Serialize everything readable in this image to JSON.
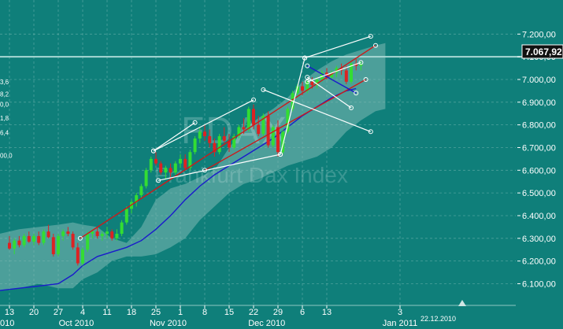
{
  "colors": {
    "background": "#0f7f7a",
    "band": "#7fb9b5",
    "grid": "#6ab0ab",
    "up_candle": "#33dd33",
    "down_candle": "#dd2222",
    "trend_red": "#cc1a1a",
    "trend_blue": "#1a1acc",
    "channel_white": "#ffffff"
  },
  "chart_data": {
    "type": "candlestick",
    "watermark_title": "FDAX",
    "watermark_subtitle": "Frankfurt Dax Index",
    "current_price_label": "7.067,92",
    "current_price": 7067.92,
    "date_marker_label": "22.12.2010",
    "ylim": [
      6060,
      7260
    ],
    "y_ticks": [
      "7.200,00",
      "7.100,00",
      "7.000,00",
      "6.900,00",
      "6.800,00",
      "6.700,00",
      "6.600,00",
      "6.500,00",
      "6.400,00",
      "6.300,00",
      "6.200,00",
      "6.100,00"
    ],
    "y_tick_values": [
      7200,
      7100,
      7000,
      6900,
      6800,
      6700,
      6600,
      6500,
      6400,
      6300,
      6200,
      6100
    ],
    "x_day_labels": [
      "13",
      "20",
      "27",
      "4",
      "11",
      "18",
      "25",
      "1",
      "8",
      "15",
      "22",
      "29",
      "6",
      "13",
      "3"
    ],
    "x_day_index": [
      0,
      5,
      10,
      15,
      20,
      25,
      30,
      35,
      40,
      45,
      50,
      55,
      60,
      65,
      80
    ],
    "x_month_labels": [
      "010",
      "Oct 2010",
      "Nov 2010",
      "Dec 2010",
      "Jan 2011"
    ],
    "x_month_index": [
      -2.6,
      13.7,
      32.5,
      52.7,
      80
    ],
    "fib_labels": [
      "3,6",
      "8,2",
      "0,0",
      "1,8",
      "6,4",
      "00,0"
    ],
    "fib_values": [
      6990,
      6935,
      6890,
      6830,
      6765,
      6665
    ],
    "candles": [
      [
        6280,
        6310,
        6250,
        6255
      ],
      [
        6255,
        6300,
        6230,
        6290
      ],
      [
        6290,
        6310,
        6260,
        6270
      ],
      [
        6270,
        6320,
        6260,
        6310
      ],
      [
        6310,
        6330,
        6280,
        6285
      ],
      [
        6285,
        6320,
        6270,
        6310
      ],
      [
        6310,
        6330,
        6270,
        6280
      ],
      [
        6280,
        6340,
        6270,
        6330
      ],
      [
        6330,
        6360,
        6300,
        6305
      ],
      [
        6305,
        6320,
        6220,
        6230
      ],
      [
        6230,
        6320,
        6220,
        6310
      ],
      [
        6310,
        6340,
        6290,
        6330
      ],
      [
        6330,
        6350,
        6310,
        6320
      ],
      [
        6320,
        6330,
        6250,
        6260
      ],
      [
        6260,
        6280,
        6180,
        6190
      ],
      [
        6190,
        6260,
        6180,
        6250
      ],
      [
        6250,
        6330,
        6240,
        6320
      ],
      [
        6320,
        6340,
        6300,
        6330
      ],
      [
        6330,
        6350,
        6300,
        6310
      ],
      [
        6310,
        6330,
        6290,
        6320
      ],
      [
        6320,
        6350,
        6300,
        6330
      ],
      [
        6330,
        6340,
        6290,
        6300
      ],
      [
        6300,
        6340,
        6290,
        6320
      ],
      [
        6320,
        6380,
        6310,
        6370
      ],
      [
        6370,
        6440,
        6360,
        6430
      ],
      [
        6430,
        6470,
        6410,
        6460
      ],
      [
        6460,
        6500,
        6440,
        6490
      ],
      [
        6490,
        6540,
        6480,
        6530
      ],
      [
        6530,
        6610,
        6520,
        6600
      ],
      [
        6600,
        6660,
        6590,
        6650
      ],
      [
        6650,
        6680,
        6620,
        6630
      ],
      [
        6630,
        6640,
        6580,
        6590
      ],
      [
        6590,
        6620,
        6560,
        6610
      ],
      [
        6610,
        6630,
        6570,
        6590
      ],
      [
        6590,
        6640,
        6580,
        6630
      ],
      [
        6630,
        6670,
        6610,
        6650
      ],
      [
        6650,
        6670,
        6600,
        6610
      ],
      [
        6610,
        6690,
        6600,
        6680
      ],
      [
        6680,
        6750,
        6670,
        6740
      ],
      [
        6740,
        6790,
        6720,
        6770
      ],
      [
        6770,
        6800,
        6730,
        6750
      ],
      [
        6750,
        6780,
        6700,
        6720
      ],
      [
        6720,
        6740,
        6660,
        6680
      ],
      [
        6680,
        6760,
        6670,
        6750
      ],
      [
        6750,
        6790,
        6720,
        6730
      ],
      [
        6730,
        6760,
        6680,
        6700
      ],
      [
        6700,
        6760,
        6690,
        6750
      ],
      [
        6750,
        6800,
        6740,
        6790
      ],
      [
        6790,
        6830,
        6760,
        6780
      ],
      [
        6780,
        6880,
        6770,
        6870
      ],
      [
        6870,
        6890,
        6780,
        6800
      ],
      [
        6800,
        6840,
        6750,
        6760
      ],
      [
        6760,
        6850,
        6750,
        6840
      ],
      [
        6840,
        6860,
        6700,
        6710
      ],
      [
        6710,
        6800,
        6700,
        6790
      ],
      [
        6790,
        6820,
        6660,
        6680
      ],
      [
        6680,
        6780,
        6670,
        6770
      ],
      [
        6770,
        6880,
        6760,
        6870
      ],
      [
        6870,
        6950,
        6860,
        6940
      ],
      [
        6940,
        6980,
        6920,
        6970
      ],
      [
        6970,
        6990,
        6930,
        6950
      ],
      [
        6950,
        7000,
        6940,
        6990
      ],
      [
        6990,
        7010,
        6960,
        6975
      ],
      [
        6975,
        7010,
        6960,
        7000
      ],
      [
        7000,
        7040,
        6990,
        7030
      ],
      [
        7030,
        7050,
        7000,
        7010
      ],
      [
        7010,
        7040,
        6995,
        7030
      ],
      [
        7030,
        7060,
        7010,
        7050
      ],
      [
        7050,
        7070,
        7020,
        7040
      ],
      [
        7040,
        7060,
        6980,
        6990
      ],
      [
        6990,
        7080,
        6980,
        7070
      ],
      [
        7070,
        7090,
        7040,
        7060
      ],
      [
        7060,
        7080,
        7040,
        7068
      ]
    ],
    "band_top": [
      6320,
      6340,
      6350,
      6360,
      6370,
      6360,
      6350,
      6300,
      6280,
      6350,
      6470,
      6520,
      6540,
      6570,
      6600,
      6700,
      6780,
      6830,
      6870,
      6920,
      6990,
      7040,
      7080,
      7110,
      7130,
      7150,
      7160
    ],
    "band_bottom": [
      6070,
      6080,
      6100,
      6080,
      6080,
      6120,
      6150,
      6200,
      6220,
      6220,
      6230,
      6260,
      6300,
      6380,
      6440,
      6500,
      6540,
      6560,
      6590,
      6620,
      6640,
      6660,
      6700,
      6770,
      6820,
      6860,
      6870
    ],
    "band_index": [
      -2,
      2,
      6,
      10,
      13,
      15,
      18,
      21,
      24,
      27,
      30,
      33,
      36,
      39,
      42,
      45,
      48,
      51,
      54,
      57,
      60,
      63,
      66,
      69,
      72,
      75,
      77
    ],
    "ma_blue": [
      6070,
      6080,
      6090,
      6100,
      6140,
      6180,
      6220,
      6240,
      6260,
      6290,
      6340,
      6400,
      6470,
      6530,
      6580,
      6620,
      6660,
      6700,
      6740,
      6790,
      6840,
      6880,
      6920,
      6950,
      6960
    ],
    "ma_index": [
      -2,
      2,
      6,
      10,
      13,
      15,
      18,
      21,
      24,
      27,
      30,
      33,
      36,
      39,
      42,
      45,
      48,
      51,
      54,
      57,
      60,
      63,
      66,
      69,
      71
    ],
    "trend_lines": [
      {
        "color": "red",
        "points": [
          [
            14.5,
            6300
          ],
          [
            75,
            7150
          ]
        ]
      },
      {
        "color": "red",
        "points": [
          [
            40,
            6600
          ],
          [
            73,
            7000
          ]
        ]
      },
      {
        "color": "blue",
        "points": [
          [
            61,
            7060
          ],
          [
            71,
            6940
          ]
        ]
      },
      {
        "color": "white",
        "points": [
          [
            29.5,
            6685
          ],
          [
            50,
            6910
          ]
        ]
      },
      {
        "color": "white",
        "points": [
          [
            29.5,
            6685
          ],
          [
            38,
            6810
          ]
        ]
      },
      {
        "color": "white",
        "points": [
          [
            30.5,
            6555
          ],
          [
            55.5,
            6670
          ]
        ]
      },
      {
        "color": "white",
        "points": [
          [
            55.5,
            6670
          ],
          [
            60.5,
            7095
          ]
        ]
      },
      {
        "color": "white",
        "points": [
          [
            60.5,
            7095
          ],
          [
            74,
            7190
          ]
        ]
      },
      {
        "color": "white",
        "points": [
          [
            61,
            7010
          ],
          [
            70,
            6875
          ]
        ]
      },
      {
        "color": "white",
        "points": [
          [
            52,
            6955
          ],
          [
            74,
            6770
          ]
        ]
      },
      {
        "color": "white",
        "points": [
          [
            61,
            6990
          ],
          [
            72,
            7075
          ]
        ]
      }
    ],
    "horizontal_lines": [
      7100
    ]
  }
}
